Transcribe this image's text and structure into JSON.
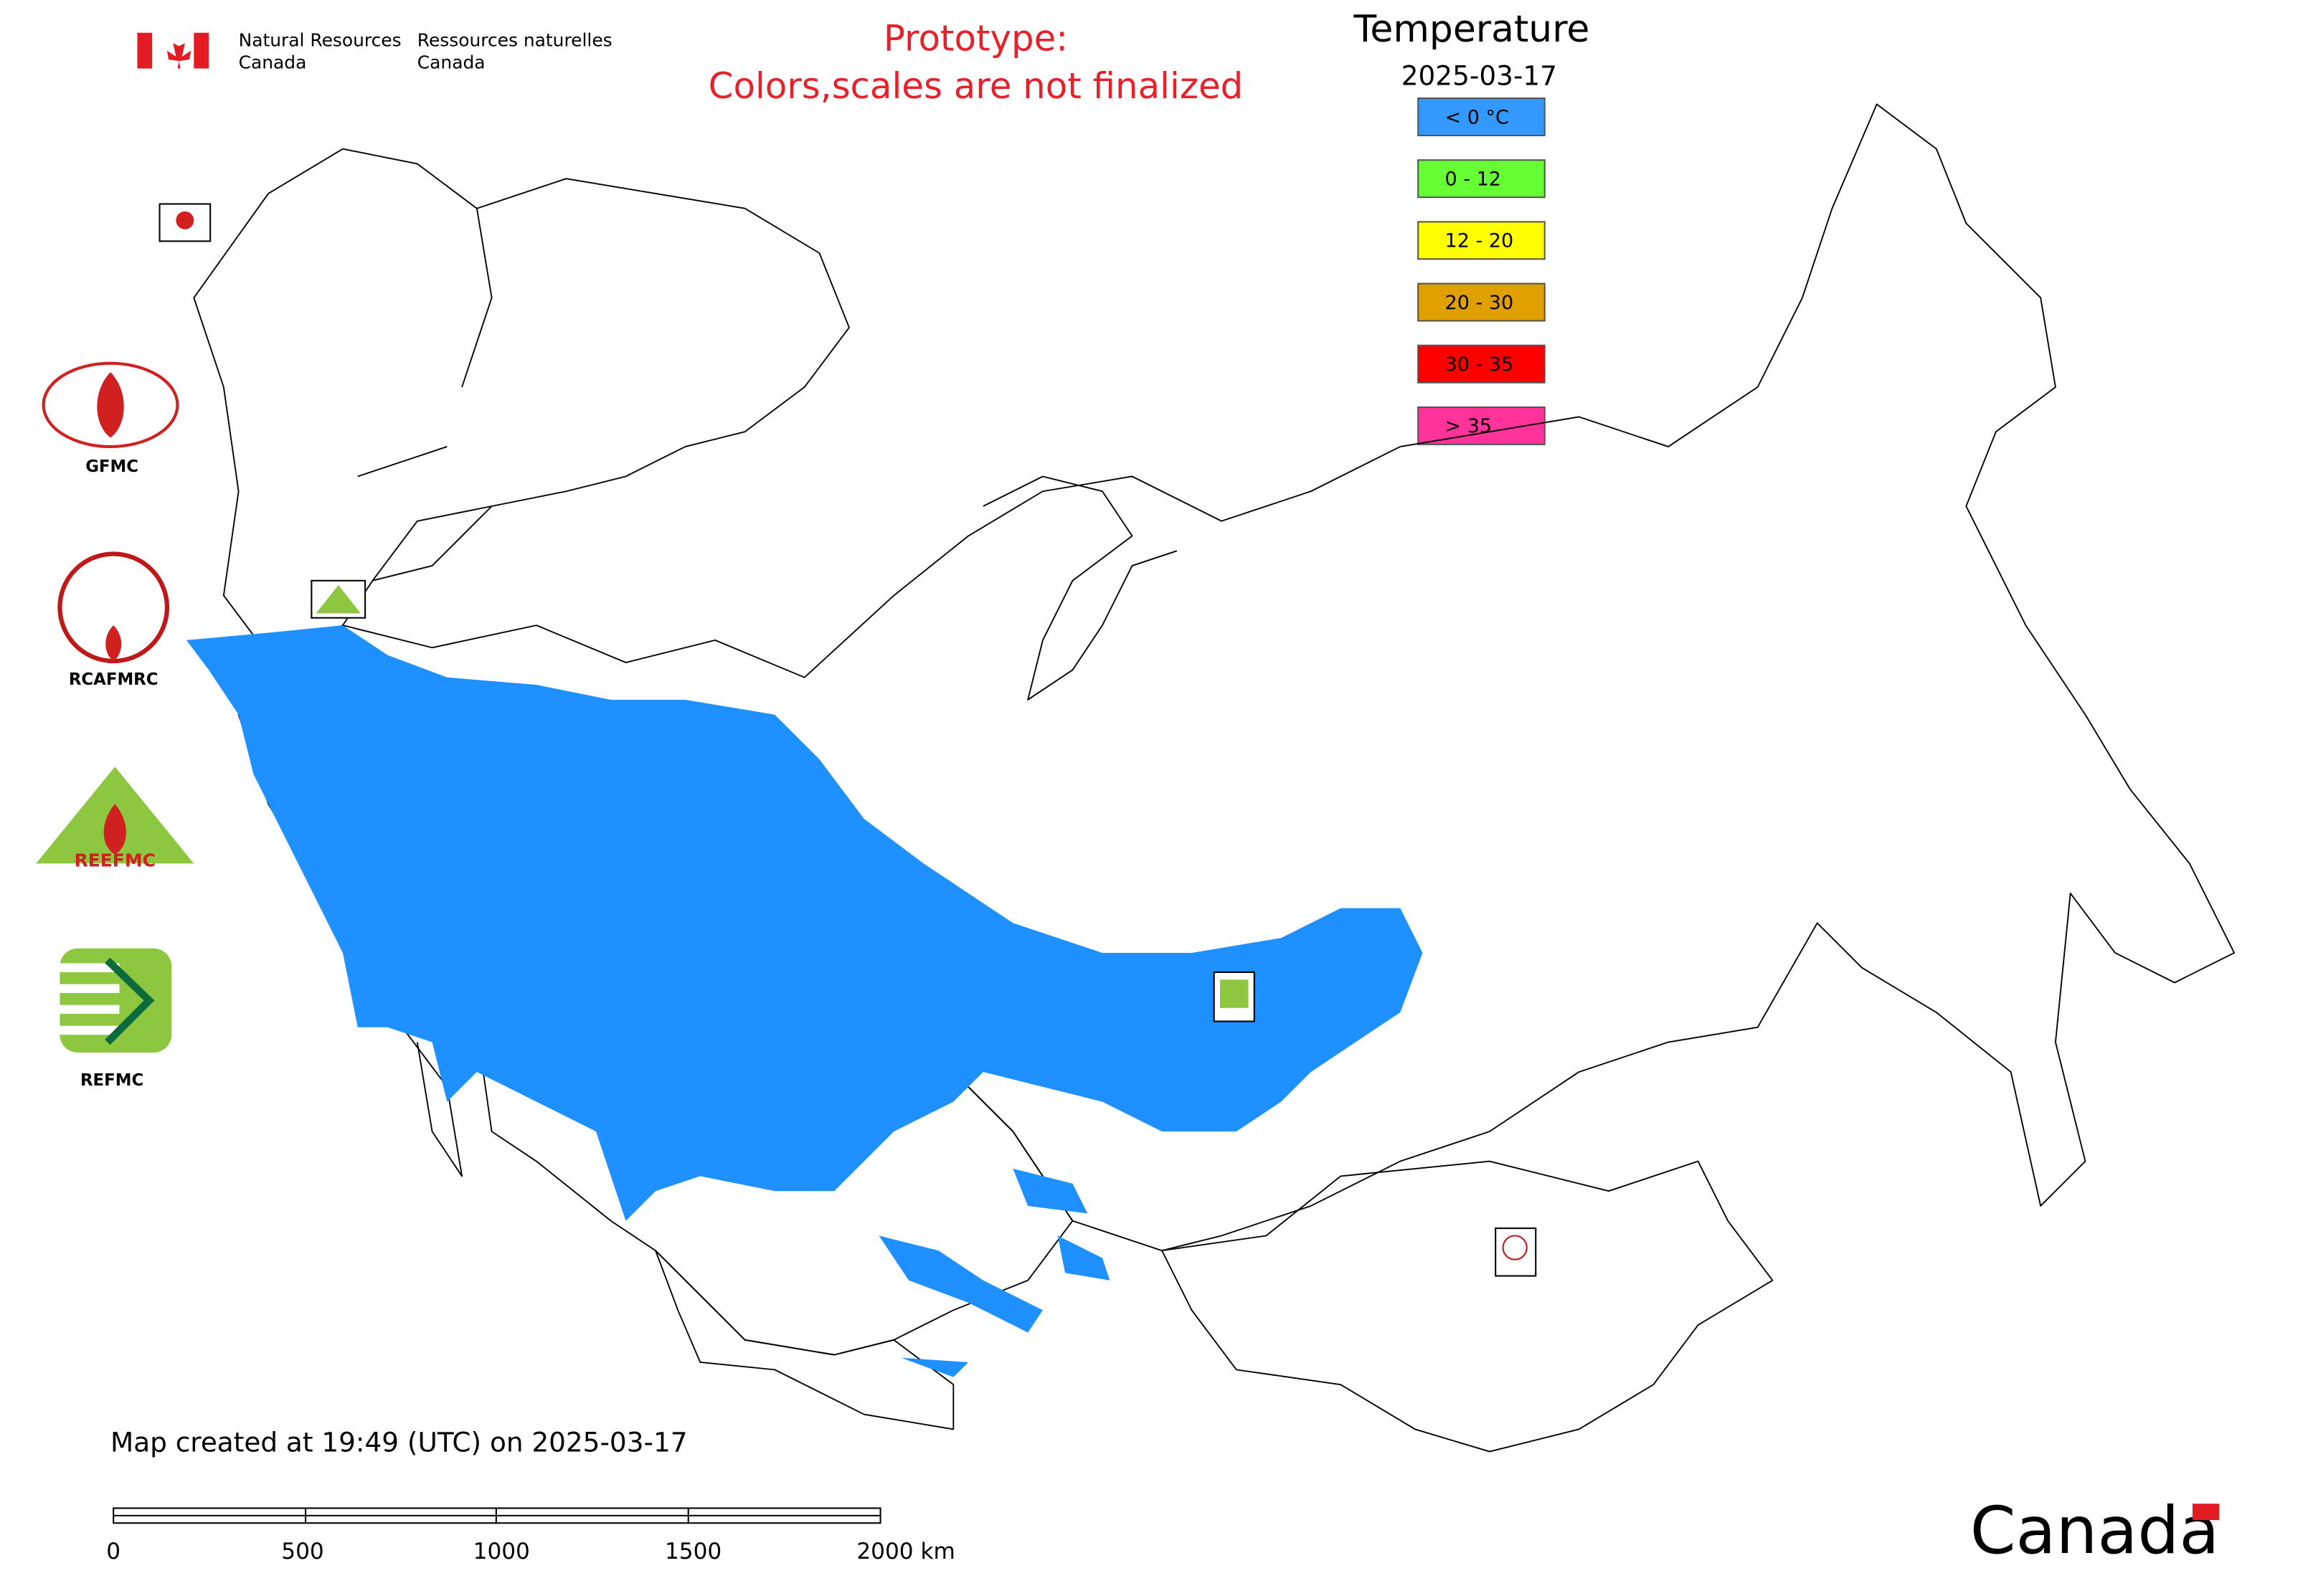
{
  "header": {
    "en_line1": "Natural Resources",
    "en_line2": "Canada",
    "fr_line1": "Ressources naturelles",
    "fr_line2": "Canada"
  },
  "notice": {
    "line1": "Prototype:",
    "line2": "Colors,scales are not finalized"
  },
  "legend": {
    "title": "Temperature",
    "date": "2025-03-17",
    "items": [
      {
        "label": "< 0 °C",
        "color": "#3399ff"
      },
      {
        "label": "0 - 12",
        "color": "#66ff33"
      },
      {
        "label": "12 - 20",
        "color": "#ffff00"
      },
      {
        "label": "20 - 30",
        "color": "#e0a000"
      },
      {
        "label": "30 - 35",
        "color": "#ff0000"
      },
      {
        "label": "> 35",
        "color": "#ff3399"
      }
    ]
  },
  "logos": [
    "GFMC",
    "RCAFMRC",
    "REEFMC",
    "REFMC"
  ],
  "footer": "Map created at 19:49 (UTC) on 2025-03-17",
  "scale_bar": {
    "labels": [
      "0",
      "500",
      "1000",
      "1500",
      "2000 km"
    ]
  },
  "wordmark": "Canada"
}
